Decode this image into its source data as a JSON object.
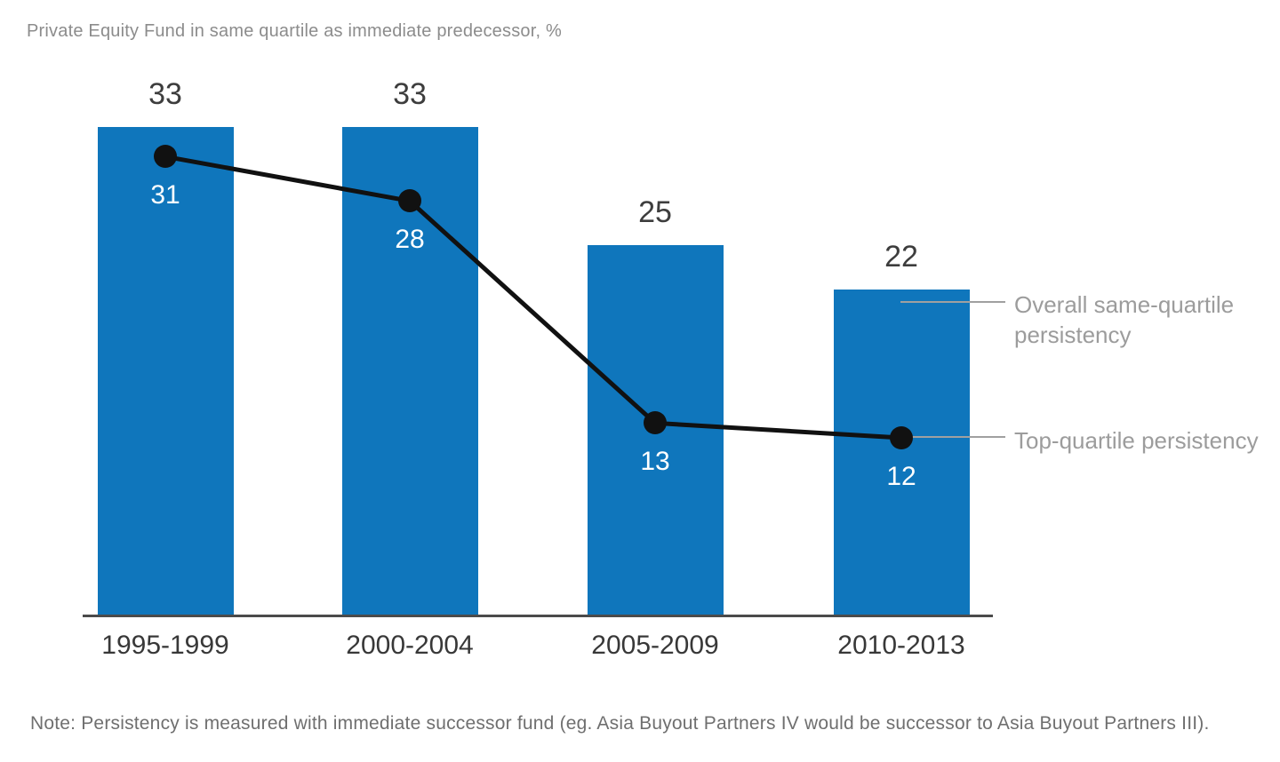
{
  "title": "Private Equity Fund in same quartile as immediate predecessor, %",
  "note": "Note: Persistency is measured with immediate successor fund (eg. Asia Buyout Partners IV would be successor to Asia Buyout Partners III).",
  "legend": {
    "overall_label": "Overall same-quartile persistency",
    "top_label": "Top-quartile persistency"
  },
  "colors": {
    "background": "#ffffff",
    "bar": "#0f76bc",
    "line": "#111111",
    "bar_value_label": "#3d3d3d",
    "in_bar_label": "#ffffff",
    "axis": "#4b4b4b",
    "axis_label": "#383838",
    "title": "#8c8c8c",
    "legend_text": "#9c9c9c",
    "legend_connector": "#a0a0a0",
    "note": "#6f6f6f"
  },
  "chart_data": {
    "type": "bar",
    "title": "Private Equity Fund in same quartile as immediate predecessor, %",
    "categories": [
      "1995-1999",
      "2000-2004",
      "2005-2009",
      "2010-2013"
    ],
    "series": [
      {
        "name": "Overall same-quartile persistency",
        "type": "bar",
        "values": [
          33,
          33,
          25,
          22
        ]
      },
      {
        "name": "Top-quartile persistency",
        "type": "line",
        "values": [
          31,
          28,
          13,
          12
        ]
      }
    ],
    "xlabel": "",
    "ylabel": "Private Equity Fund in same quartile as immediate predecessor, %",
    "ylim": [
      0,
      34
    ],
    "grid": false,
    "y_axis_visible": false,
    "legend_position": "right-outside",
    "data_labels": true,
    "bar_color": "#0f76bc",
    "line_color": "#111111"
  }
}
